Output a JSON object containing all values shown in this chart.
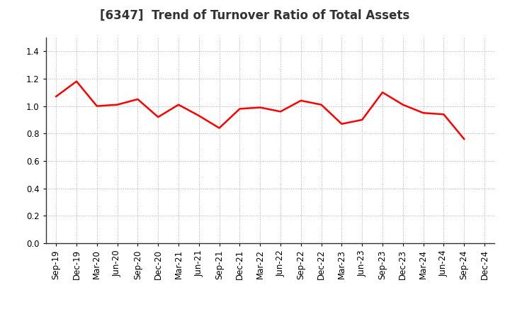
{
  "title": "[6347]  Trend of Turnover Ratio of Total Assets",
  "labels": [
    "Sep-19",
    "Dec-19",
    "Mar-20",
    "Jun-20",
    "Sep-20",
    "Dec-20",
    "Mar-21",
    "Jun-21",
    "Sep-21",
    "Dec-21",
    "Mar-22",
    "Jun-22",
    "Sep-22",
    "Dec-22",
    "Mar-23",
    "Jun-23",
    "Sep-23",
    "Dec-23",
    "Mar-24",
    "Jun-24",
    "Sep-24",
    "Dec-24"
  ],
  "values": [
    1.07,
    1.18,
    1.0,
    1.01,
    1.05,
    0.92,
    1.01,
    0.93,
    0.84,
    0.98,
    0.99,
    0.96,
    1.04,
    1.01,
    0.87,
    0.9,
    1.1,
    1.01,
    0.95,
    0.94,
    0.76,
    null
  ],
  "line_color": "#FF0000",
  "line_width": 1.8,
  "ylim": [
    0.0,
    1.5
  ],
  "yticks": [
    0.0,
    0.2,
    0.4,
    0.6,
    0.8,
    1.0,
    1.2,
    1.4
  ],
  "background_color": "#FFFFFF",
  "grid_color": "#AAAAAA",
  "title_fontsize": 12,
  "tick_fontsize": 8.5
}
